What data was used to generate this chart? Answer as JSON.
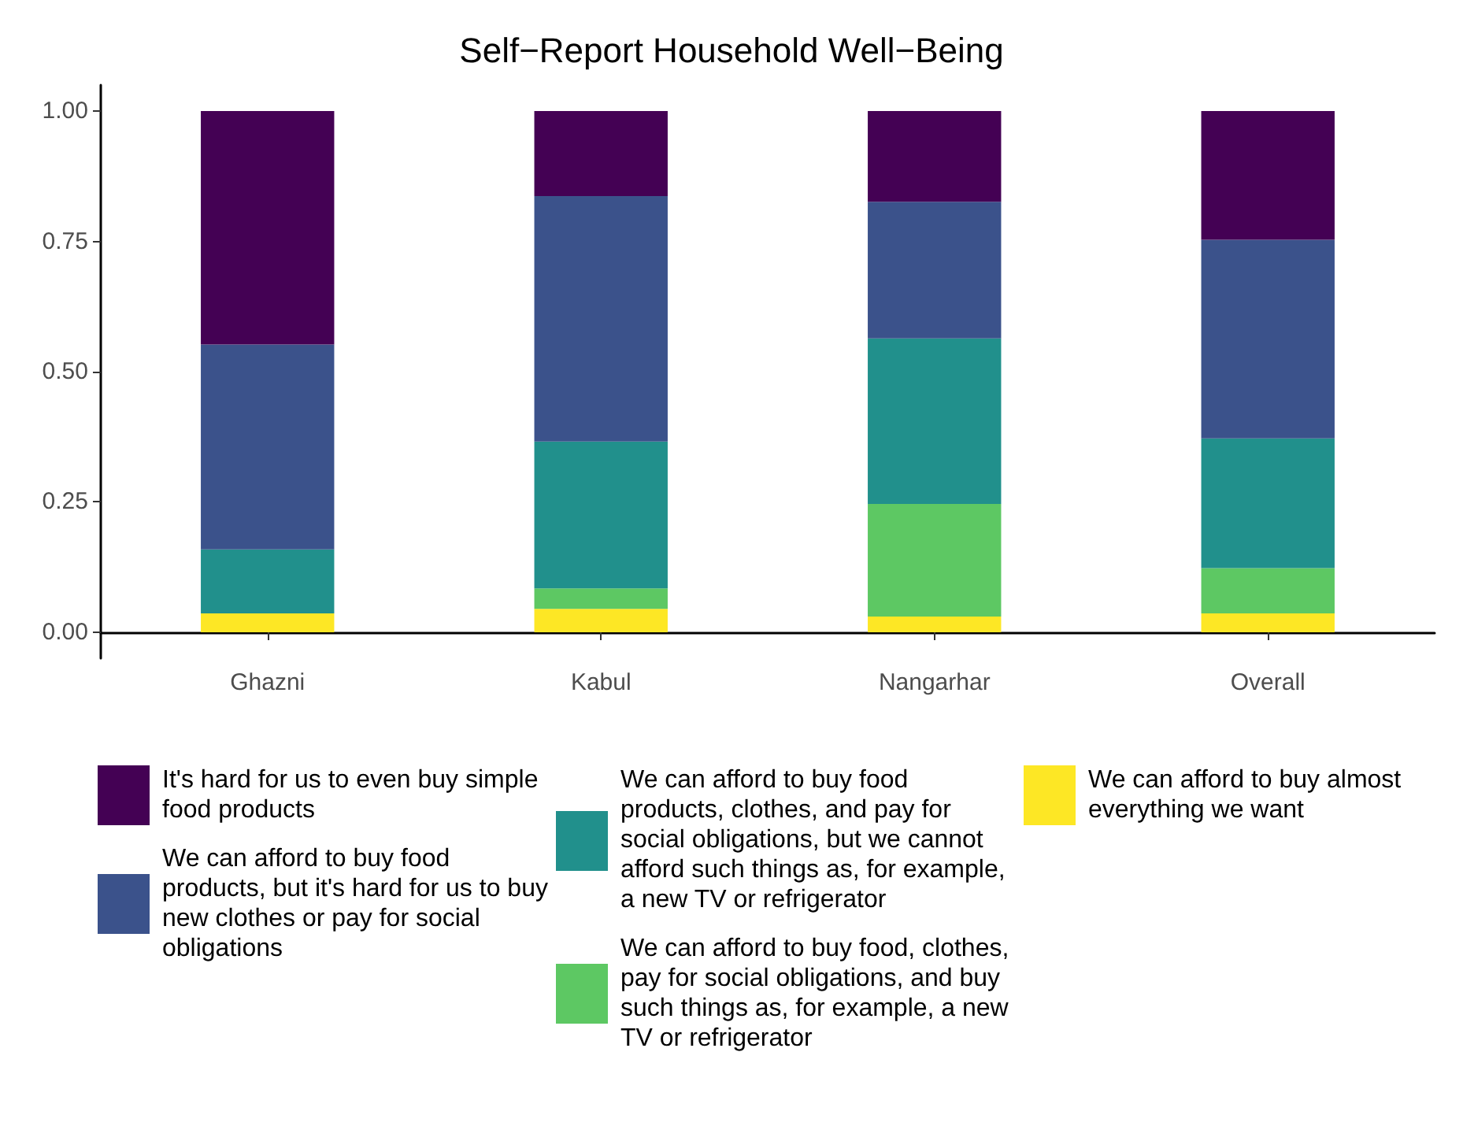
{
  "chart_data": {
    "type": "bar",
    "title": "Self−Report Household Well−Being",
    "stacked": true,
    "categories": [
      "Ghazni",
      "Kabul",
      "Nangarhar",
      "Overall"
    ],
    "series": [
      {
        "name": "We can afford to buy almost everything we want",
        "color": "#fde725",
        "values": [
          0.036,
          0.045,
          0.03,
          0.036
        ]
      },
      {
        "name": "We can afford to buy food, clothes, pay for social obligations, and buy such things as, for example, a new TV or refrigerator",
        "color": "#5dc863",
        "values": [
          0,
          0.039,
          0.216,
          0.087
        ]
      },
      {
        "name": "We can afford to buy food products, clothes, and pay for social obligations, but we cannot afford such things as, for example, a new TV or refrigerator",
        "color": "#21908c",
        "values": [
          0.123,
          0.282,
          0.318,
          0.249
        ]
      },
      {
        "name": "We can afford to buy food products, but it's hard for us to buy new clothes or pay for social obligations",
        "color": "#3b528b",
        "values": [
          0.393,
          0.471,
          0.262,
          0.381
        ]
      },
      {
        "name": "It's hard for us to even buy simple food products",
        "color": "#440154",
        "values": [
          0.448,
          0.163,
          0.174,
          0.247
        ]
      }
    ],
    "ylim": [
      -0.05,
      1.05
    ],
    "yticks": [
      {
        "value": 0,
        "label": "0.00"
      },
      {
        "value": 0.25,
        "label": "0.25"
      },
      {
        "value": 0.5,
        "label": "0.50"
      },
      {
        "value": 0.75,
        "label": "0.75"
      },
      {
        "value": 1,
        "label": "1.00"
      }
    ],
    "grid": false,
    "legend": "bottom"
  }
}
